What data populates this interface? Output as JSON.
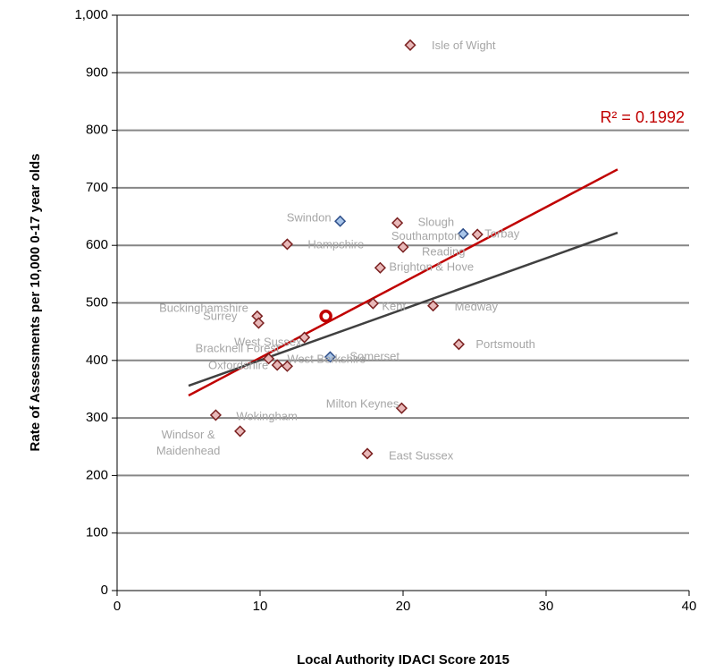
{
  "chart_data": {
    "type": "scatter",
    "xlabel": "Local Authority IDACI Score 2015",
    "ylabel": "Rate of Assessments  per 10,000 0-17 year olds",
    "xlim": [
      0,
      40
    ],
    "xticks": [
      0,
      10,
      20,
      30,
      40
    ],
    "ylim": [
      0,
      1000
    ],
    "yticks": [
      0,
      100,
      200,
      300,
      400,
      500,
      600,
      700,
      800,
      900,
      {
        "value": 1000,
        "label": "1,000"
      }
    ],
    "grid": true,
    "points": {
      "labels": [
        "Isle of Wight",
        "Swindon",
        "Slough",
        "Southampton",
        "Torbay",
        "Hampshire",
        "Reading",
        "Brighton & Hove",
        "Kent",
        "Medway",
        "Buckinghamshire",
        "Surrey",
        "Portsmouth",
        "West Sussex",
        "Bracknell Forest",
        "Oxfordshire",
        "West Berkshire",
        "Somerset",
        "Milton Keynes",
        "Wokingham",
        "Windsor & Maidenhead",
        "East Sussex"
      ],
      "x": [
        20.5,
        15.6,
        19.6,
        24.2,
        25.2,
        11.9,
        20.0,
        18.4,
        17.9,
        22.1,
        9.8,
        9.9,
        23.9,
        13.1,
        10.6,
        11.2,
        11.9,
        14.9,
        19.9,
        6.9,
        8.6,
        17.5
      ],
      "values": [
        948,
        642,
        639,
        620,
        619,
        602,
        597,
        561,
        499,
        495,
        477,
        465,
        428,
        440,
        403,
        392,
        390,
        406,
        317,
        305,
        277,
        238
      ],
      "colors": [
        "#e8b8b8",
        "#a9c6ea",
        "#e8b8b8",
        "#a9c6ea",
        "#e8b8b8",
        "#e8b8b8",
        "#e8b8b8",
        "#e8b8b8",
        "#e8b8b8",
        "#e8b8b8",
        "#e8b8b8",
        "#e8b8b8",
        "#e8b8b8",
        "#e8b8b8",
        "#e8b8b8",
        "#e8b8b8",
        "#e8b8b8",
        "#a9c6ea",
        "#e8b8b8",
        "#e8b8b8",
        "#e8b8b8",
        "#e8b8b8"
      ]
    },
    "average": {
      "x": 14.6,
      "value": 477,
      "color": "#c00000"
    },
    "trendlines": [
      {
        "x": [
          5,
          35
        ],
        "values": [
          339,
          732
        ],
        "color": "#c00000"
      },
      {
        "x": [
          5,
          35
        ],
        "values": [
          356,
          622
        ],
        "color": "#404040"
      }
    ],
    "annotation": {
      "text": "R² = 0.1992",
      "color": "#c00000"
    }
  }
}
